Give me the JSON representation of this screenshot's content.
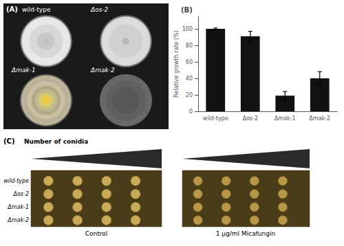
{
  "chart_data": {
    "type": "bar",
    "title": "(B)",
    "categories": [
      "wild-type",
      "Δos-2",
      "Δmak-1",
      "Δmak-2"
    ],
    "values": [
      100,
      91,
      19,
      40
    ],
    "errors": [
      1,
      6,
      5,
      8
    ],
    "color": "#111111",
    "ylabel": "Relative growth rate (%)",
    "ylim": [
      0,
      115
    ],
    "yticks": [
      0,
      20,
      40,
      60,
      80,
      100
    ],
    "grid": false,
    "annotations": [
      [
        "(A)",
        "wild-type",
        "Δos-2",
        "Δmak-1",
        "Δmak-2"
      ],
      [
        "(C)",
        "Number of conidia",
        "wild-type",
        "Δos-2",
        "Δmak-1",
        "Δmak-2",
        "Control",
        "1 μg/ml Micafungin"
      ]
    ]
  }
}
